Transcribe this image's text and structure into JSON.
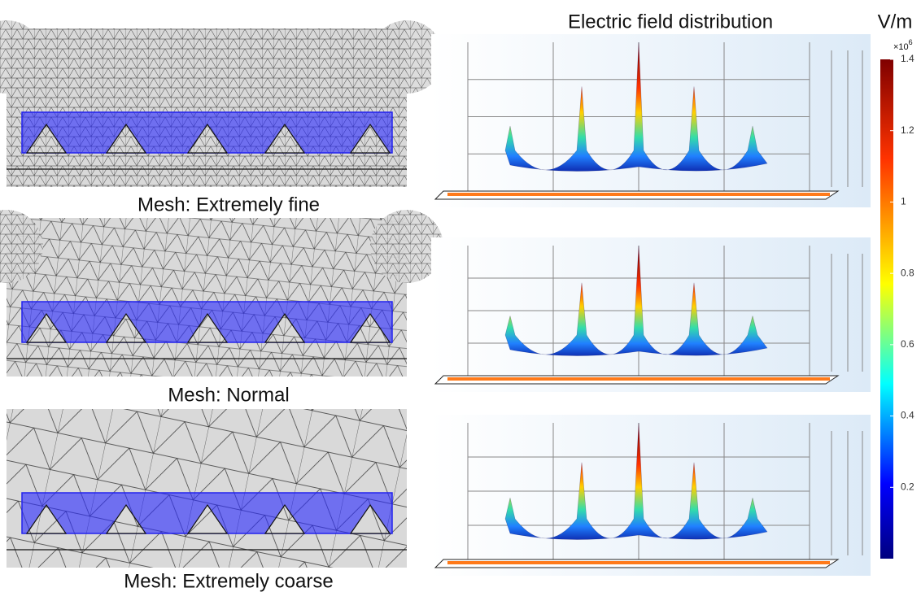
{
  "figure": {
    "title": "Electric field distribution",
    "unit": "V/m",
    "colorbar": {
      "multiplier": "×10",
      "exponent": "6",
      "lim": [
        0,
        1.4
      ],
      "ticks": [
        0.2,
        0.4,
        0.6,
        0.8,
        1,
        1.2,
        1.4
      ]
    },
    "panels": [
      {
        "label": "Mesh: Extremely fine"
      },
      {
        "label": "Mesh: Normal"
      },
      {
        "label": "Mesh: Extremely coarse"
      }
    ]
  }
}
